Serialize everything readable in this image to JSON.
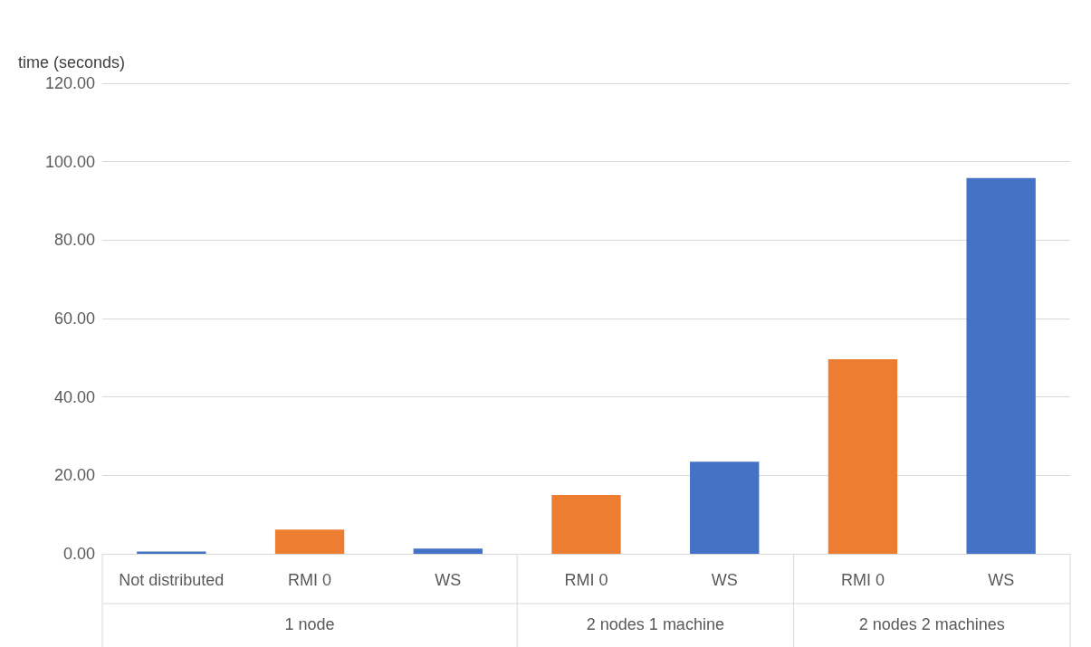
{
  "chart_data": {
    "type": "bar",
    "ylabel": "time (seconds)",
    "categories": [
      "Not distributed",
      "RMI 0",
      "WS",
      "RMI 0",
      "WS",
      "RMI 0",
      "WS"
    ],
    "values": [
      0.6,
      6.2,
      1.3,
      15.0,
      23.5,
      49.6,
      95.8
    ],
    "colors": [
      "#4472c4",
      "#ed7d31",
      "#4472c4",
      "#ed7d31",
      "#4472c4",
      "#ed7d31",
      "#4472c4"
    ],
    "ylim": [
      0,
      120
    ],
    "yticks": [
      {
        "value": 0,
        "label": "0.00"
      },
      {
        "value": 20,
        "label": "20.00"
      },
      {
        "value": 40,
        "label": "40.00"
      },
      {
        "value": 60,
        "label": "60.00"
      },
      {
        "value": 80,
        "label": "80.00"
      },
      {
        "value": 100,
        "label": "100.00"
      },
      {
        "value": 120,
        "label": "120.00"
      }
    ],
    "grid": "y",
    "annotations": [
      "1 node",
      "2 nodes 1 machine",
      "2 nodes 2 machines"
    ]
  }
}
